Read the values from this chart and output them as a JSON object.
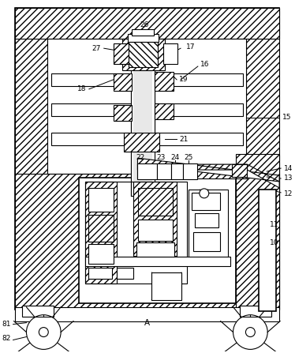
{
  "bg_color": "#ffffff",
  "figsize": [
    3.74,
    4.47
  ],
  "dpi": 100
}
